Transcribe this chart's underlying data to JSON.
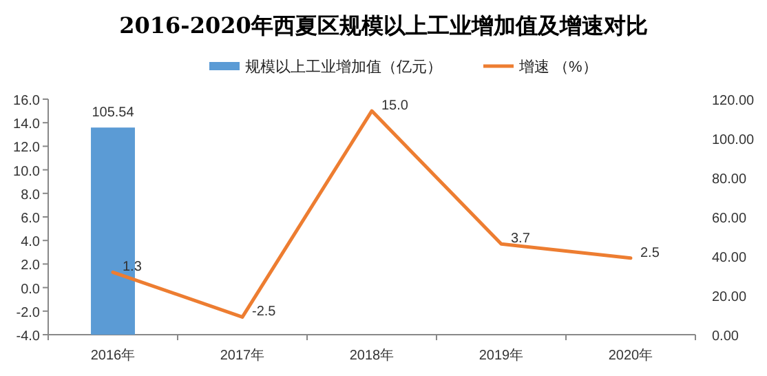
{
  "chart_data": {
    "type": "bar",
    "title": "2016-2020年西夏区规模以上工业增加值及增速对比",
    "categories": [
      "2016年",
      "2017年",
      "2018年",
      "2019年",
      "2020年"
    ],
    "series": [
      {
        "name": "规模以上工业增加值（亿元）",
        "axis": "y2",
        "color": "#5b9bd5",
        "values": [
          105.54,
          null,
          null,
          null,
          null
        ]
      },
      {
        "name": "增速 （%）",
        "type": "line",
        "axis": "y",
        "color": "#ed7d31",
        "values": [
          1.3,
          -2.5,
          15.0,
          3.7,
          2.5
        ],
        "value_labels": [
          "1.3",
          "-2.5",
          "15.0",
          "3.7",
          "2.5"
        ]
      }
    ],
    "ylim": [
      -4,
      16
    ],
    "yticks": [
      {
        "value": -4,
        "label": "-4.0"
      },
      {
        "value": -2,
        "label": "-2.0"
      },
      {
        "value": 0,
        "label": "0.0"
      },
      {
        "value": 2,
        "label": "2.0"
      },
      {
        "value": 4,
        "label": "4.0"
      },
      {
        "value": 6,
        "label": "6.0"
      },
      {
        "value": 8,
        "label": "8.0"
      },
      {
        "value": 10,
        "label": "10.0"
      },
      {
        "value": 12,
        "label": "12.0"
      },
      {
        "value": 14,
        "label": "14.0"
      },
      {
        "value": 16,
        "label": "16.0"
      }
    ],
    "y2lim": [
      0,
      120
    ],
    "y2ticks": [
      {
        "value": 0,
        "label": "0.00"
      },
      {
        "value": 20,
        "label": "20.00"
      },
      {
        "value": 40,
        "label": "40.00"
      },
      {
        "value": 60,
        "label": "60.00"
      },
      {
        "value": 80,
        "label": "80.00"
      },
      {
        "value": 100,
        "label": "100.00"
      },
      {
        "value": 120,
        "label": "120.00"
      }
    ],
    "data_labels": true,
    "legend": "top",
    "marker": "none"
  }
}
